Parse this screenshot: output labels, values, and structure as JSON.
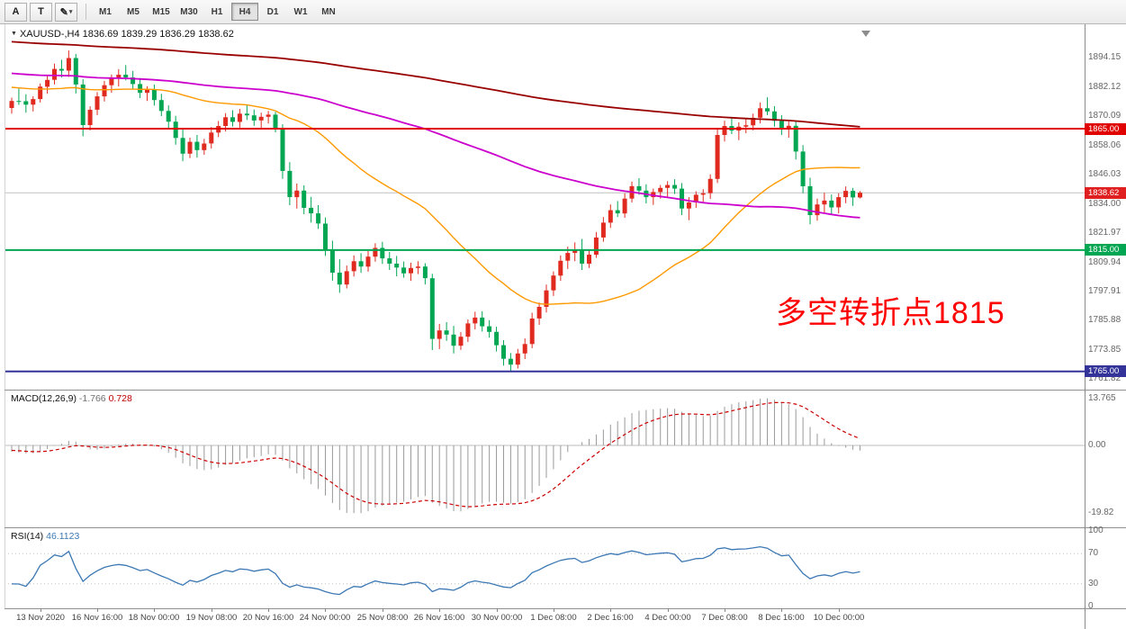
{
  "toolbar": {
    "tools": [
      {
        "label": "A"
      },
      {
        "label": "T"
      }
    ],
    "dropdown": {
      "icon": "✎",
      "caret": "▾"
    },
    "timeframes": [
      {
        "label": "M1",
        "active": false
      },
      {
        "label": "M5",
        "active": false
      },
      {
        "label": "M15",
        "active": false
      },
      {
        "label": "M30",
        "active": false
      },
      {
        "label": "H1",
        "active": false
      },
      {
        "label": "H4",
        "active": true
      },
      {
        "label": "D1",
        "active": false
      },
      {
        "label": "W1",
        "active": false
      },
      {
        "label": "MN",
        "active": false
      }
    ]
  },
  "chart": {
    "type": "candlestick",
    "symbol_arrow": "▼",
    "title_symbol": "XAUUSD-,H4",
    "title_ohlc": "1836.69 1839.29 1836.29 1838.62",
    "annotation": {
      "text": "多空转折点1815",
      "color": "#fe0000"
    },
    "price_range": {
      "top": 1908.0,
      "bottom": 1757.5
    },
    "bid": {
      "price": 1838.62,
      "label": "1838.62",
      "color": "#e02020"
    },
    "hlines": [
      {
        "price": 1865.0,
        "label": "1865.00",
        "color": "#e00000"
      },
      {
        "price": 1815.0,
        "label": "1815.00",
        "color": "#00a651"
      },
      {
        "price": 1765.0,
        "label": "1765.00",
        "color": "#333399"
      }
    ],
    "y_axis_labels": [
      "1894.15",
      "1882.12",
      "1870.09",
      "1858.06",
      "1846.03",
      "1834.00",
      "1821.97",
      "1809.94",
      "1797.91",
      "1785.88",
      "1773.85",
      "1761.82"
    ],
    "x_axis_labels": [
      {
        "index": 4,
        "label": "13 Nov 2020"
      },
      {
        "index": 12,
        "label": "16 Nov 16:00"
      },
      {
        "index": 20,
        "label": "18 Nov 00:00"
      },
      {
        "index": 28,
        "label": "19 Nov 08:00"
      },
      {
        "index": 36,
        "label": "20 Nov 16:00"
      },
      {
        "index": 44,
        "label": "24 Nov 00:00"
      },
      {
        "index": 52,
        "label": "25 Nov 08:00"
      },
      {
        "index": 60,
        "label": "26 Nov 16:00"
      },
      {
        "index": 68,
        "label": "30 Nov 00:00"
      },
      {
        "index": 76,
        "label": "1 Dec 08:00"
      },
      {
        "index": 84,
        "label": "2 Dec 16:00"
      },
      {
        "index": 92,
        "label": "4 Dec 00:00"
      },
      {
        "index": 100,
        "label": "7 Dec 08:00"
      },
      {
        "index": 108,
        "label": "8 Dec 16:00"
      },
      {
        "index": 116,
        "label": "10 Dec 00:00"
      }
    ],
    "candles": [
      [
        1873.5,
        1877.8,
        1871.2,
        1876.4
      ],
      [
        1876.4,
        1881.5,
        1874.8,
        1876.3
      ],
      [
        1876.3,
        1879.2,
        1871.6,
        1874.9
      ],
      [
        1874.9,
        1878.4,
        1872.1,
        1877.2
      ],
      [
        1877.2,
        1883.6,
        1875.8,
        1882.3
      ],
      [
        1882.3,
        1886.9,
        1879.4,
        1885.1
      ],
      [
        1885.1,
        1891.8,
        1883.2,
        1889.6
      ],
      [
        1889.6,
        1893.4,
        1886.1,
        1888.9
      ],
      [
        1888.9,
        1897.2,
        1886.3,
        1894.1
      ],
      [
        1894.1,
        1895.8,
        1879.5,
        1883.2
      ],
      [
        1883.2,
        1885.4,
        1861.9,
        1866.5
      ],
      [
        1866.5,
        1874.2,
        1864.3,
        1872.8
      ],
      [
        1872.8,
        1880.1,
        1870.6,
        1878.3
      ],
      [
        1878.3,
        1884.7,
        1876.2,
        1882.9
      ],
      [
        1882.9,
        1887.3,
        1879.8,
        1885.6
      ],
      [
        1885.6,
        1889.5,
        1882.4,
        1887.2
      ],
      [
        1887.2,
        1891.2,
        1884.9,
        1886.1
      ],
      [
        1886.1,
        1888.8,
        1881.3,
        1883.4
      ],
      [
        1883.4,
        1885.9,
        1877.6,
        1879.8
      ],
      [
        1879.8,
        1882.5,
        1876.4,
        1881.1
      ],
      [
        1881.1,
        1883.2,
        1874.5,
        1876.8
      ],
      [
        1876.8,
        1879.4,
        1870.2,
        1872.3
      ],
      [
        1872.3,
        1874.6,
        1865.1,
        1867.9
      ],
      [
        1867.9,
        1870.3,
        1858.4,
        1861.2
      ],
      [
        1861.2,
        1864.8,
        1851.6,
        1854.7
      ],
      [
        1854.7,
        1861.3,
        1852.9,
        1859.6
      ],
      [
        1859.6,
        1862.4,
        1853.1,
        1856.2
      ],
      [
        1856.2,
        1860.8,
        1854.3,
        1858.9
      ],
      [
        1858.9,
        1865.7,
        1856.8,
        1863.4
      ],
      [
        1863.4,
        1868.2,
        1861.5,
        1866.1
      ],
      [
        1866.1,
        1871.4,
        1863.8,
        1869.7
      ],
      [
        1869.7,
        1872.6,
        1865.9,
        1867.8
      ],
      [
        1867.8,
        1873.1,
        1865.4,
        1871.2
      ],
      [
        1871.2,
        1874.8,
        1868.6,
        1870.5
      ],
      [
        1870.5,
        1872.9,
        1866.2,
        1868.4
      ],
      [
        1868.4,
        1871.6,
        1864.8,
        1869.9
      ],
      [
        1869.9,
        1872.3,
        1867.1,
        1870.8
      ],
      [
        1870.8,
        1871.9,
        1863.5,
        1865.2
      ],
      [
        1865.2,
        1866.8,
        1844.3,
        1847.6
      ],
      [
        1847.6,
        1851.2,
        1833.5,
        1836.8
      ],
      [
        1836.8,
        1842.4,
        1832.1,
        1839.5
      ],
      [
        1839.5,
        1841.7,
        1829.8,
        1832.4
      ],
      [
        1832.4,
        1836.9,
        1826.3,
        1830.1
      ],
      [
        1830.1,
        1833.5,
        1823.7,
        1825.9
      ],
      [
        1825.9,
        1828.4,
        1812.6,
        1815.3
      ],
      [
        1815.3,
        1818.9,
        1802.4,
        1805.7
      ],
      [
        1805.7,
        1811.2,
        1797.4,
        1800.8
      ],
      [
        1800.8,
        1808.6,
        1799.2,
        1806.3
      ],
      [
        1806.3,
        1812.8,
        1804.1,
        1810.4
      ],
      [
        1810.4,
        1813.7,
        1805.6,
        1808.2
      ],
      [
        1808.2,
        1814.6,
        1806.1,
        1812.3
      ],
      [
        1812.3,
        1817.8,
        1810.2,
        1815.9
      ],
      [
        1815.9,
        1818.4,
        1809.3,
        1811.6
      ],
      [
        1811.6,
        1814.2,
        1806.8,
        1809.4
      ],
      [
        1809.4,
        1812.6,
        1804.2,
        1807.8
      ],
      [
        1807.8,
        1810.3,
        1803.6,
        1805.4
      ],
      [
        1805.4,
        1809.8,
        1802.3,
        1807.6
      ],
      [
        1807.6,
        1810.4,
        1805.1,
        1808.2
      ],
      [
        1808.2,
        1809.6,
        1800.8,
        1803.4
      ],
      [
        1803.4,
        1805.2,
        1773.8,
        1778.4
      ],
      [
        1778.4,
        1784.6,
        1774.2,
        1781.9
      ],
      [
        1781.9,
        1785.3,
        1777.6,
        1780.2
      ],
      [
        1780.2,
        1783.8,
        1772.4,
        1775.6
      ],
      [
        1775.6,
        1781.2,
        1773.9,
        1779.3
      ],
      [
        1779.3,
        1786.4,
        1777.1,
        1784.8
      ],
      [
        1784.8,
        1789.6,
        1782.3,
        1787.2
      ],
      [
        1787.2,
        1789.8,
        1781.4,
        1783.6
      ],
      [
        1783.6,
        1786.1,
        1778.9,
        1781.3
      ],
      [
        1781.3,
        1783.4,
        1773.2,
        1775.8
      ],
      [
        1775.8,
        1777.9,
        1767.4,
        1770.2
      ],
      [
        1770.2,
        1772.6,
        1764.9,
        1767.8
      ],
      [
        1767.8,
        1774.3,
        1766.2,
        1772.4
      ],
      [
        1772.4,
        1778.6,
        1770.1,
        1776.3
      ],
      [
        1776.3,
        1789.2,
        1774.6,
        1786.8
      ],
      [
        1786.8,
        1793.4,
        1784.2,
        1791.6
      ],
      [
        1791.6,
        1800.8,
        1789.3,
        1798.4
      ],
      [
        1798.4,
        1806.2,
        1796.1,
        1804.5
      ],
      [
        1804.5,
        1812.8,
        1802.3,
        1810.6
      ],
      [
        1810.6,
        1816.4,
        1807.2,
        1813.8
      ],
      [
        1813.8,
        1818.2,
        1810.4,
        1815.3
      ],
      [
        1815.3,
        1819.6,
        1806.8,
        1809.4
      ],
      [
        1809.4,
        1815.2,
        1807.6,
        1813.1
      ],
      [
        1813.1,
        1822.4,
        1811.8,
        1820.2
      ],
      [
        1820.2,
        1828.6,
        1818.4,
        1826.3
      ],
      [
        1826.3,
        1833.8,
        1824.1,
        1831.4
      ],
      [
        1831.4,
        1835.2,
        1828.6,
        1830.1
      ],
      [
        1830.1,
        1838.4,
        1828.3,
        1836.2
      ],
      [
        1836.2,
        1843.2,
        1834.6,
        1841.3
      ],
      [
        1841.3,
        1844.6,
        1837.8,
        1839.5
      ],
      [
        1839.5,
        1842.1,
        1834.2,
        1836.8
      ],
      [
        1836.8,
        1840.3,
        1833.6,
        1838.9
      ],
      [
        1838.9,
        1841.8,
        1836.2,
        1840.6
      ],
      [
        1840.6,
        1843.4,
        1836.9,
        1841.8
      ],
      [
        1841.8,
        1844.2,
        1838.1,
        1840.3
      ],
      [
        1840.3,
        1842.6,
        1829.4,
        1832.1
      ],
      [
        1832.1,
        1836.8,
        1827.3,
        1834.6
      ],
      [
        1834.6,
        1839.2,
        1832.4,
        1837.8
      ],
      [
        1837.8,
        1840.1,
        1834.9,
        1838.4
      ],
      [
        1838.4,
        1846.2,
        1836.1,
        1844.3
      ],
      [
        1844.3,
        1864.8,
        1842.6,
        1862.4
      ],
      [
        1862.4,
        1868.3,
        1859.7,
        1866.1
      ],
      [
        1866.1,
        1869.4,
        1862.8,
        1864.2
      ],
      [
        1864.2,
        1867.6,
        1860.3,
        1865.8
      ],
      [
        1865.8,
        1868.9,
        1863.1,
        1866.4
      ],
      [
        1866.4,
        1871.2,
        1864.3,
        1869.5
      ],
      [
        1869.5,
        1875.8,
        1867.2,
        1873.4
      ],
      [
        1873.4,
        1877.9,
        1870.6,
        1872.1
      ],
      [
        1872.1,
        1874.3,
        1865.8,
        1868.2
      ],
      [
        1868.2,
        1870.6,
        1862.4,
        1864.9
      ],
      [
        1864.9,
        1868.1,
        1861.3,
        1866.2
      ],
      [
        1866.2,
        1868.4,
        1852.3,
        1855.6
      ],
      [
        1855.6,
        1858.2,
        1838.4,
        1841.3
      ],
      [
        1841.3,
        1844.8,
        1825.6,
        1829.4
      ],
      [
        1829.4,
        1836.2,
        1827.1,
        1833.8
      ],
      [
        1833.8,
        1838.6,
        1830.2,
        1835.4
      ],
      [
        1835.4,
        1837.9,
        1829.8,
        1832.6
      ],
      [
        1832.6,
        1838.4,
        1830.1,
        1836.8
      ],
      [
        1836.8,
        1841.2,
        1834.3,
        1839.4
      ],
      [
        1839.4,
        1840.6,
        1833.2,
        1836.7
      ],
      [
        1836.69,
        1839.29,
        1836.29,
        1838.62
      ]
    ],
    "colors": {
      "up": "#e02a20",
      "down": "#00a651",
      "ma_fast": "#ff9900",
      "ma_mid": "#cc00cc",
      "ma_slow": "#990000"
    }
  },
  "indicators": {
    "macd": {
      "label": "MACD(12,26,9)",
      "main_value": "-1.766",
      "signal_value": "0.728",
      "axis_labels": [
        "13.765",
        "0.00",
        "-19.82"
      ],
      "histogram_color": "#999999",
      "signal_color": "#cc0000"
    },
    "rsi": {
      "label": "RSI(14)",
      "value": "46.1123",
      "axis_labels": [
        "100",
        "70",
        "30",
        "0"
      ],
      "levels": [
        70,
        30
      ],
      "line_color": "#3c78b4"
    }
  }
}
